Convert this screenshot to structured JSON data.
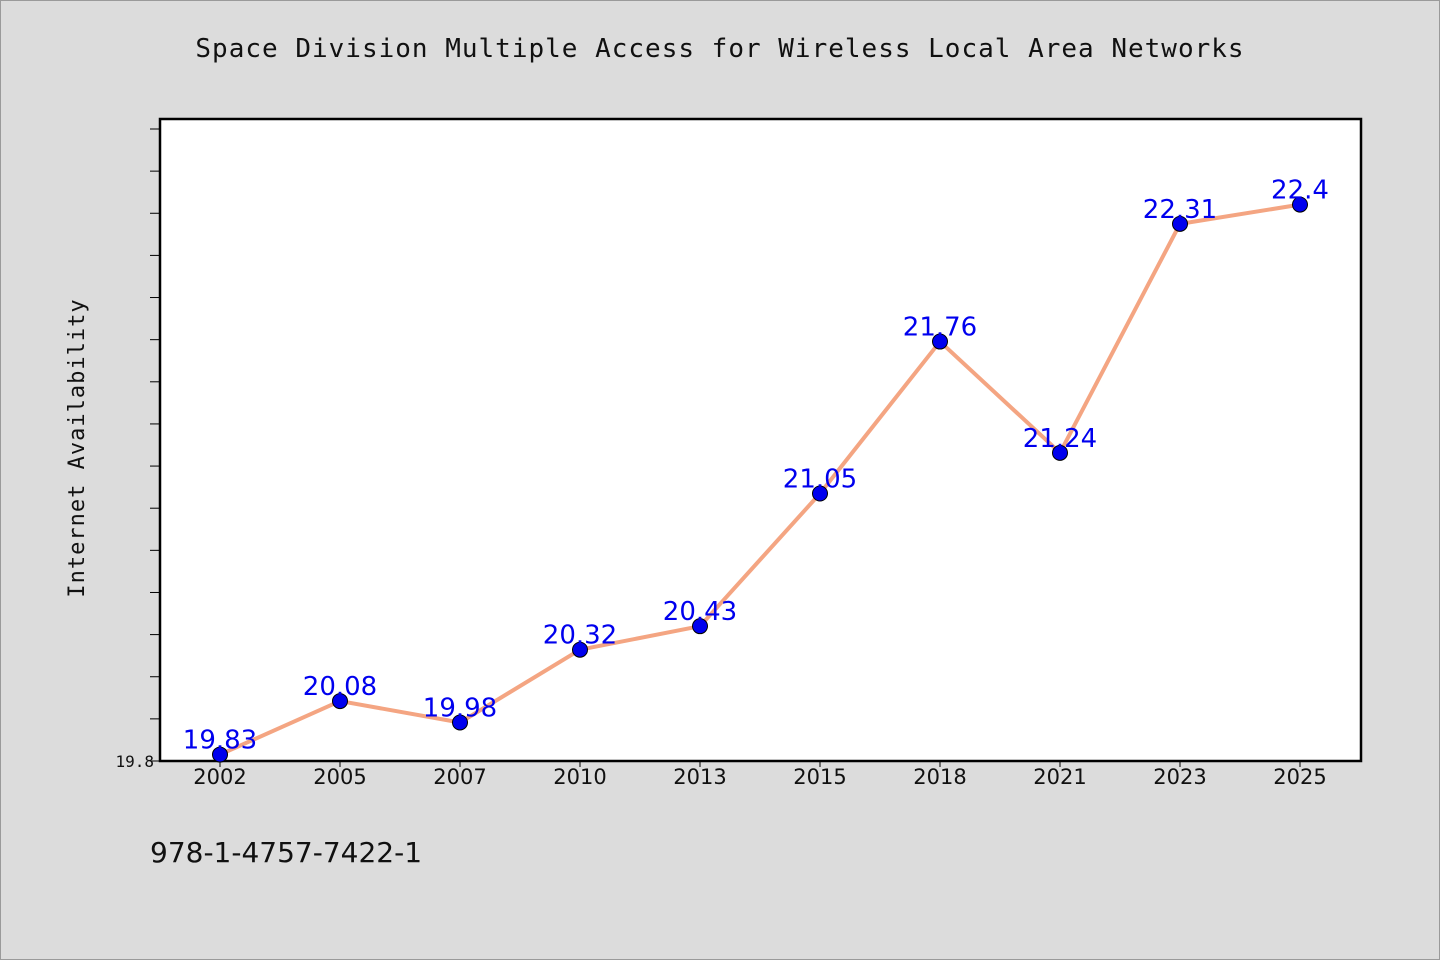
{
  "chart_data": {
    "type": "line",
    "title": "Space Division Multiple Access for Wireless Local Area Networks",
    "xlabel": "",
    "ylabel": "Internet Availability",
    "categories": [
      "2002",
      "2005",
      "2007",
      "2010",
      "2013",
      "2015",
      "2018",
      "2021",
      "2023",
      "2025"
    ],
    "series": [
      {
        "values": [
          19.83,
          20.08,
          19.98,
          20.32,
          20.43,
          21.05,
          21.76,
          21.24,
          22.31,
          22.4
        ]
      }
    ],
    "data_labels": [
      "19.83",
      "20.08",
      "19.98",
      "20.32",
      "20.43",
      "21.05",
      "21.76",
      "21.24",
      "22.31",
      "22.4"
    ],
    "y_tick_labels": [
      "19.8"
    ],
    "ylim": [
      19.8,
      22.8
    ],
    "grid": false,
    "colors": {
      "line": "#f4a582",
      "marker": "#0000ee",
      "label": "#0000ee"
    }
  },
  "footer": {
    "code": "978-1-4757-7422-1"
  }
}
